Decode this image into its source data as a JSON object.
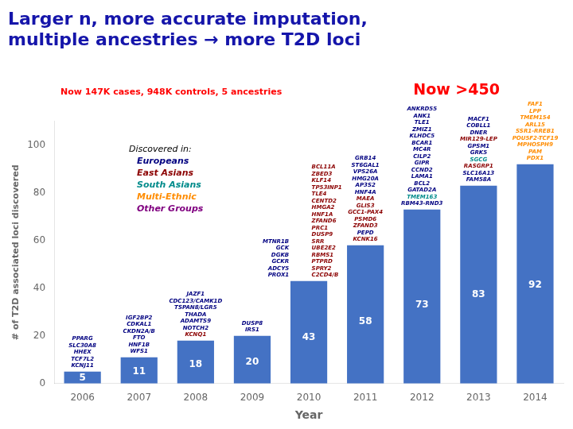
{
  "chart_data": {
    "type": "bar",
    "title": {
      "text": [
        "Larger n, more accurate imputation,",
        "multiple ancestries → more T2D loci"
      ],
      "color": "#1515AA"
    },
    "subtitle": {
      "text": "Now 147K cases, 948K controls, 5 ancestries",
      "color": "#FF0000"
    },
    "annotations": [
      {
        "text": "Now >450",
        "color": "#FF0000"
      }
    ],
    "key": {
      "title": "Discovered in:",
      "items": [
        {
          "text": "Europeans",
          "color": "#000080"
        },
        {
          "text": "East Asians",
          "color": "#8B0000"
        },
        {
          "text": "South Asians",
          "color": "#008B8B"
        },
        {
          "text": "Multi-Ethnic",
          "color": "#FF8C00"
        },
        {
          "text": "Other Groups",
          "color": "#800080"
        }
      ]
    },
    "categories": [
      "2006",
      "2007",
      "2008",
      "2009",
      "2010",
      "2011",
      "2012",
      "2013",
      "2014"
    ],
    "values": [
      5,
      11,
      18,
      20,
      43,
      58,
      73,
      83,
      92
    ],
    "color": "#4472C4",
    "data_labels": true,
    "xlabel": "Year",
    "ylabel": "# of T2D associated loci discovered",
    "ylim": [
      0,
      110
    ],
    "yticks": [
      0,
      20,
      40,
      60,
      80,
      100
    ],
    "grid": false,
    "bar_annotations": [
      [
        [
          {
            "text": "PPARG",
            "color": "#000080"
          },
          {
            "text": "SLC30A8",
            "color": "#000080"
          },
          {
            "text": "HHEX",
            "color": "#000080"
          },
          {
            "text": "TCF7L2",
            "color": "#000080"
          },
          {
            "text": "KCNJ11",
            "color": "#000080"
          }
        ]
      ],
      [
        [
          {
            "text": "IGF2BP2",
            "color": "#000080"
          },
          {
            "text": "CDKAL1",
            "color": "#000080"
          },
          {
            "text": "CKDN2A/B",
            "color": "#000080"
          },
          {
            "text": "FTO",
            "color": "#000080"
          },
          {
            "text": "HNF1B",
            "color": "#000080"
          },
          {
            "text": "WFS1",
            "color": "#000080"
          }
        ]
      ],
      [
        [
          {
            "text": "JAZF1",
            "color": "#000080"
          },
          {
            "text": "CDC123/CAMK1D",
            "color": "#000080"
          },
          {
            "text": "TSPAN8/LGR5",
            "color": "#000080"
          },
          {
            "text": "THADA",
            "color": "#000080"
          },
          {
            "text": "ADAMTS9",
            "color": "#000080"
          },
          {
            "text": "NOTCH2",
            "color": "#000080"
          },
          {
            "text": "KCNQ1",
            "color": "#8B0000"
          }
        ]
      ],
      [
        [
          {
            "text": "DUSP8",
            "color": "#000080"
          },
          {
            "text": "IRS1",
            "color": "#000080"
          }
        ]
      ],
      [
        [
          {
            "text": "MTNR1B",
            "color": "#000080"
          },
          {
            "text": "GCK",
            "color": "#000080"
          },
          {
            "text": "DGKB",
            "color": "#000080"
          },
          {
            "text": "GCKR",
            "color": "#000080"
          },
          {
            "text": "ADCY5",
            "color": "#000080"
          },
          {
            "text": "PROX1",
            "color": "#000080"
          }
        ],
        [
          {
            "text": "BCL11A",
            "color": "#8B0000"
          },
          {
            "text": "ZBED3",
            "color": "#8B0000"
          },
          {
            "text": "KLF14",
            "color": "#8B0000"
          },
          {
            "text": "TP53INP1",
            "color": "#8B0000"
          },
          {
            "text": "TLE4",
            "color": "#8B0000"
          },
          {
            "text": "CENTD2",
            "color": "#8B0000"
          },
          {
            "text": "HMGA2",
            "color": "#8B0000"
          },
          {
            "text": "HNF1A",
            "color": "#8B0000"
          },
          {
            "text": "ZFAND6",
            "color": "#8B0000"
          },
          {
            "text": "PRC1",
            "color": "#8B0000"
          },
          {
            "text": "DUSP9",
            "color": "#8B0000"
          },
          {
            "text": "SRR",
            "color": "#8B0000"
          },
          {
            "text": "UBE2E2",
            "color": "#8B0000"
          },
          {
            "text": "RBMS1",
            "color": "#8B0000"
          },
          {
            "text": "PTPRD",
            "color": "#8B0000"
          },
          {
            "text": "SPRY2",
            "color": "#8B0000"
          },
          {
            "text": "C2CD4/B",
            "color": "#8B0000"
          }
        ]
      ],
      [
        [
          {
            "text": "GRB14",
            "color": "#000080"
          },
          {
            "text": "ST6GAL1",
            "color": "#000080"
          },
          {
            "text": "VPS26A",
            "color": "#000080"
          },
          {
            "text": "HMG20A",
            "color": "#000080"
          },
          {
            "text": "AP3S2",
            "color": "#000080"
          },
          {
            "text": "HNF4A",
            "color": "#000080"
          },
          {
            "text": "MAEA",
            "color": "#8B0000"
          },
          {
            "text": "GLIS3",
            "color": "#8B0000"
          },
          {
            "text": "GCC1-PAX4",
            "color": "#8B0000"
          },
          {
            "text": "PSMD6",
            "color": "#8B0000"
          },
          {
            "text": "ZFAND3",
            "color": "#8B0000"
          },
          {
            "text": "PEPD",
            "color": "#000080"
          },
          {
            "text": "KCNK16",
            "color": "#8B0000"
          }
        ]
      ],
      [
        [
          {
            "text": "ANKRD55",
            "color": "#000080"
          },
          {
            "text": "ANK1",
            "color": "#000080"
          },
          {
            "text": "TLE1",
            "color": "#000080"
          },
          {
            "text": "ZMIZ1",
            "color": "#000080"
          },
          {
            "text": "KLHDC5",
            "color": "#000080"
          },
          {
            "text": "BCAR1",
            "color": "#000080"
          },
          {
            "text": "MC4R",
            "color": "#000080"
          },
          {
            "text": "CILP2",
            "color": "#000080"
          },
          {
            "text": "GIPR",
            "color": "#000080"
          },
          {
            "text": "CCND2",
            "color": "#000080"
          },
          {
            "text": "LAMA1",
            "color": "#000080"
          },
          {
            "text": "BCL2",
            "color": "#000080"
          },
          {
            "text": "GATAD2A",
            "color": "#000080"
          },
          {
            "text": "TMEM163",
            "color": "#008B8B"
          },
          {
            "text": "RBM43-RND3",
            "color": "#000080"
          }
        ]
      ],
      [
        [
          {
            "text": "MACF1",
            "color": "#000080"
          },
          {
            "text": "COBLL1",
            "color": "#000080"
          },
          {
            "text": "DNER",
            "color": "#000080"
          },
          {
            "text": "MIR129-LEP",
            "color": "#8B0000"
          },
          {
            "text": "GPSM1",
            "color": "#000080"
          },
          {
            "text": "GRK5",
            "color": "#000080"
          },
          {
            "text": "SGCG",
            "color": "#008B8B"
          },
          {
            "text": "RASGRP1",
            "color": "#8B0000"
          },
          {
            "text": "SLC16A13",
            "color": "#000080"
          },
          {
            "text": "FAM58A",
            "color": "#000080"
          }
        ]
      ],
      [
        [
          {
            "text": "FAF1",
            "color": "#FF8C00"
          },
          {
            "text": "LPP",
            "color": "#FF8C00"
          },
          {
            "text": "TMEM154",
            "color": "#FF8C00"
          },
          {
            "text": "ARL15",
            "color": "#FF8C00"
          },
          {
            "text": "SSR1-RREB1",
            "color": "#FF8C00"
          },
          {
            "text": "POU5F2-TCF19",
            "color": "#FF8C00"
          },
          {
            "text": "MPHOSPH9",
            "color": "#FF8C00"
          },
          {
            "text": "PAM",
            "color": "#FF8C00"
          },
          {
            "text": "PDX1",
            "color": "#FF8C00"
          }
        ]
      ]
    ]
  }
}
